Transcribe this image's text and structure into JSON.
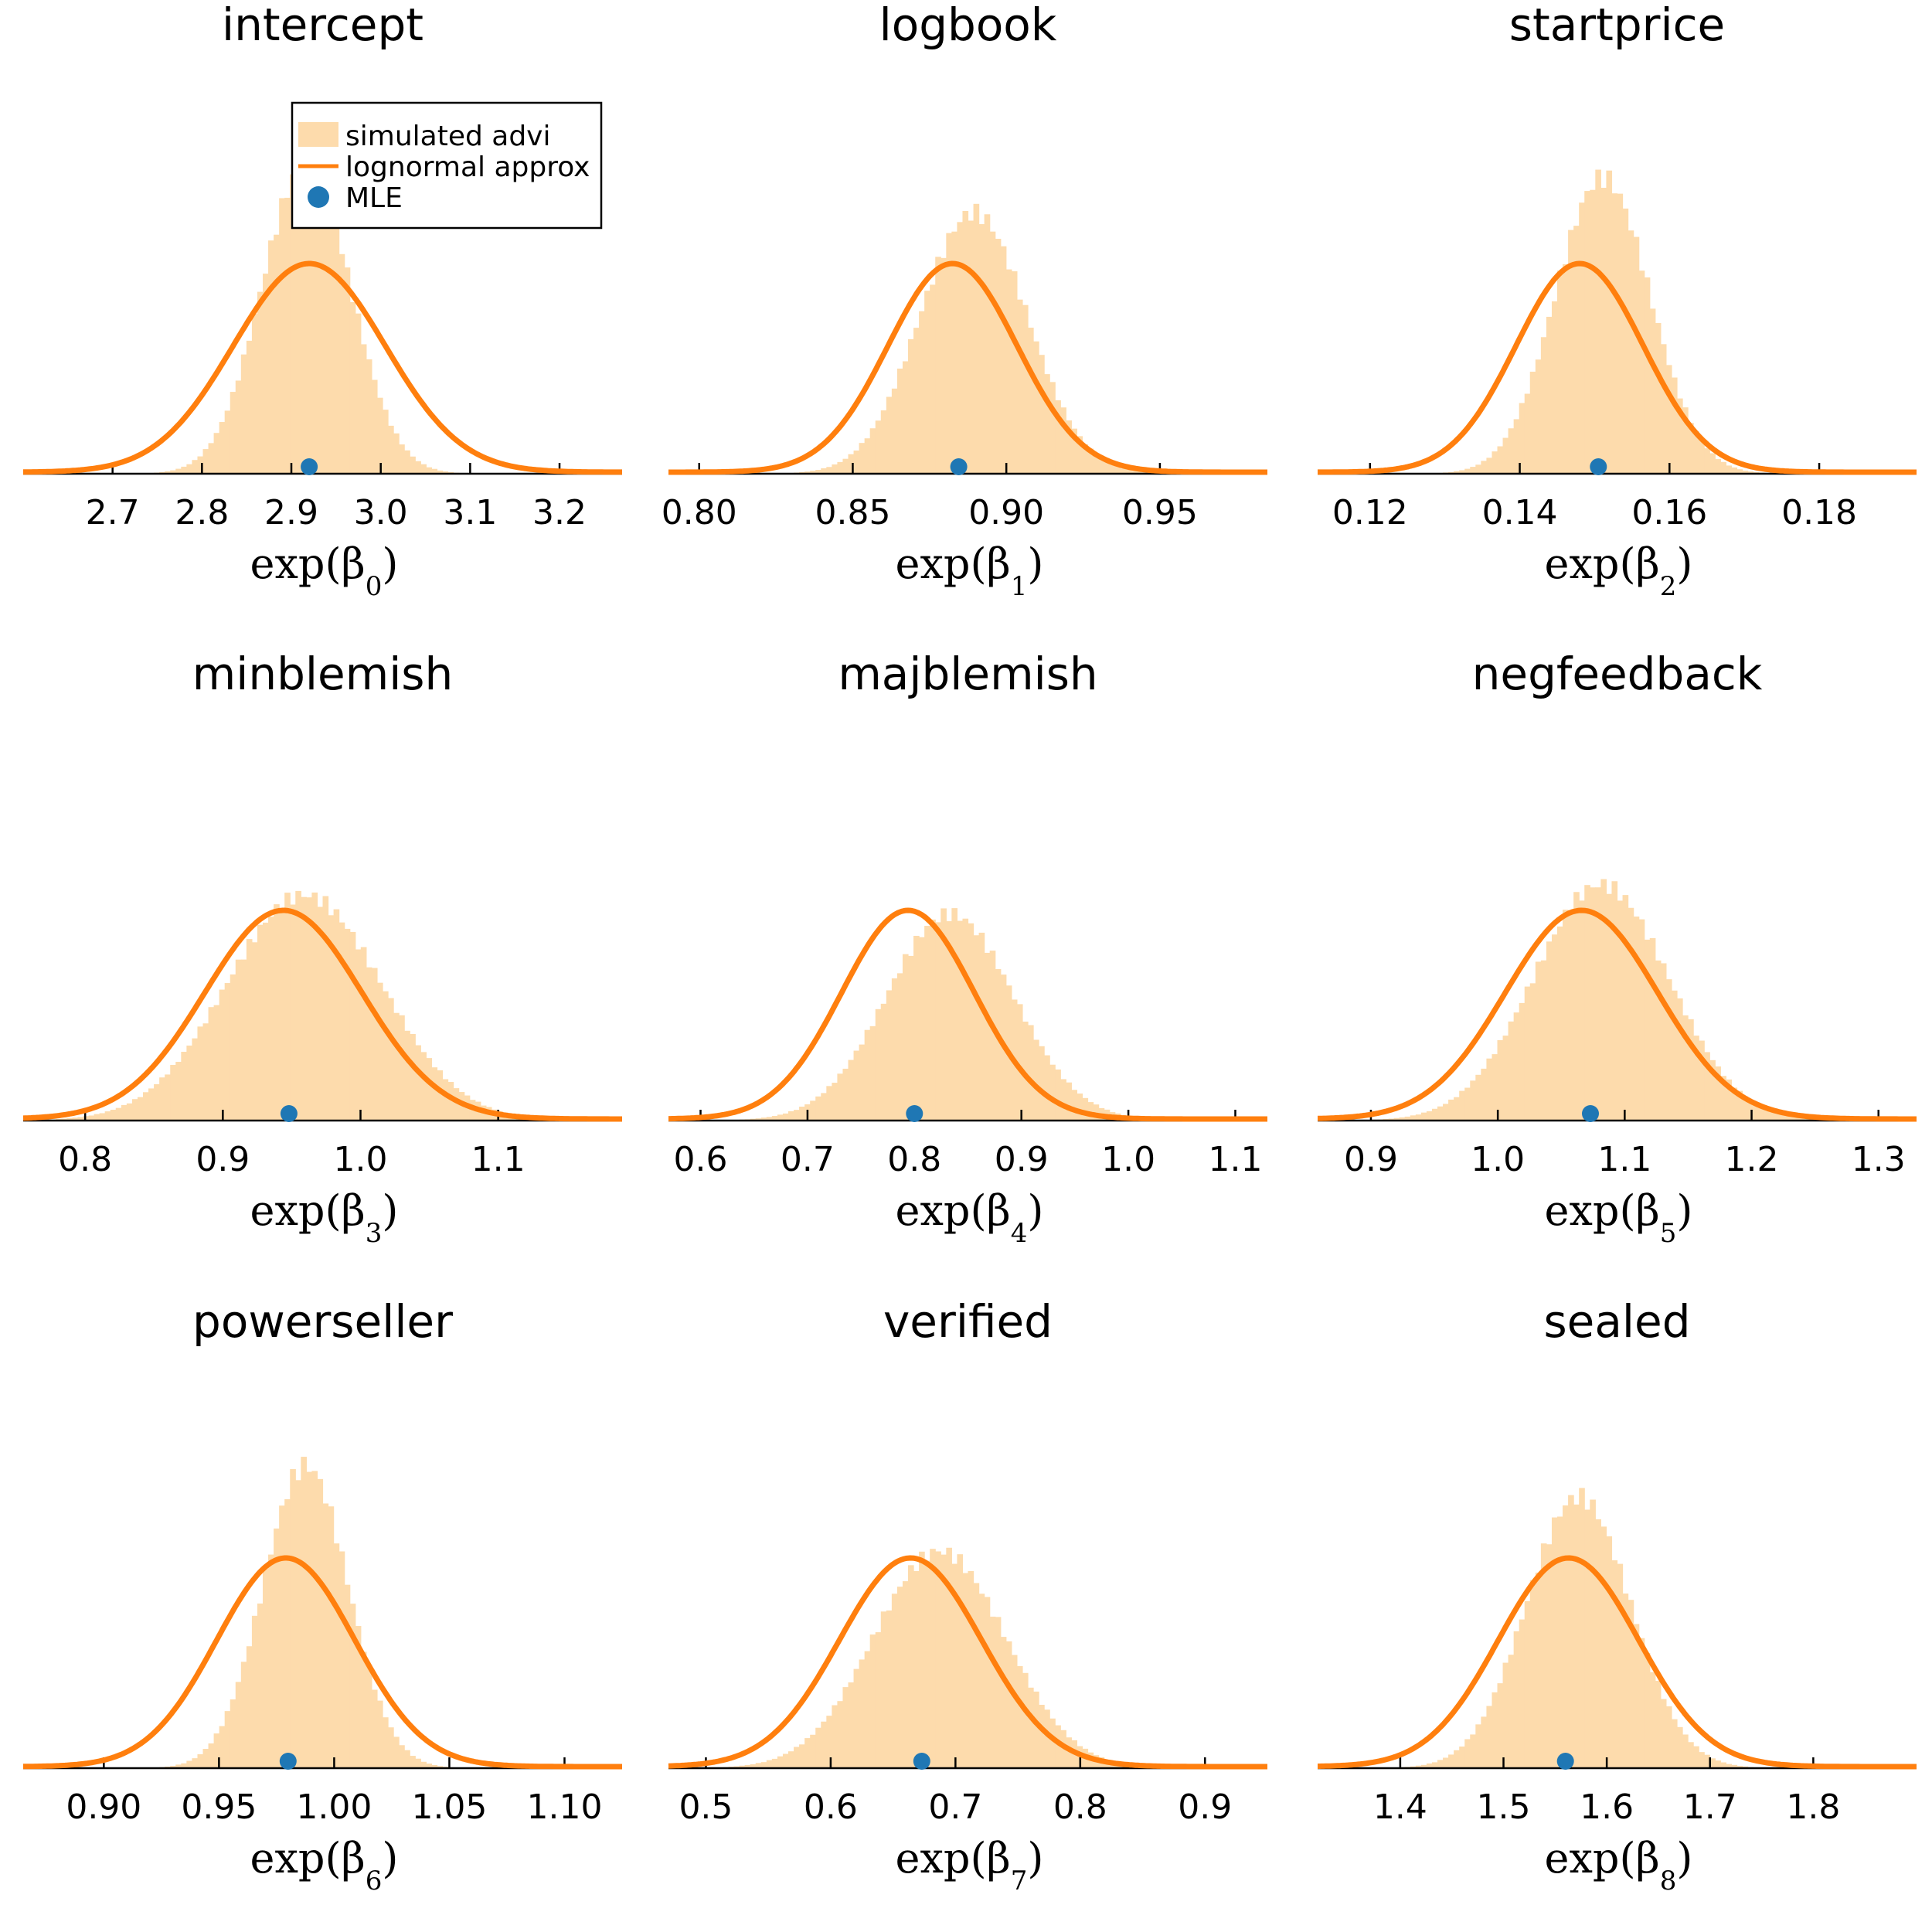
{
  "colors": {
    "hist": "#fddbac",
    "curve": "#ff7f0e",
    "mle": "#1f77b4",
    "axis": "#000000"
  },
  "legend": {
    "location": "top-right of first panel",
    "entries": [
      {
        "label": "simulated advi",
        "kind": "hist"
      },
      {
        "label": "lognormal approx",
        "kind": "line"
      },
      {
        "label": "MLE",
        "kind": "marker"
      }
    ]
  },
  "chart_data": [
    {
      "type": "histogram+density",
      "title": "intercept",
      "xlabel": "exp(β)",
      "xlabel_subscript": "0",
      "xlim": [
        2.6,
        3.27
      ],
      "xticks": [
        "2.7",
        "2.8",
        "2.9",
        "3.0",
        "3.1",
        "3.2"
      ],
      "hist": {
        "mean": 2.91,
        "sd": 0.05,
        "skew": 0.15,
        "peak": 1.48
      },
      "approx": {
        "mean": 2.92,
        "sd": 0.085,
        "peak": 1.0
      },
      "mle": 2.92
    },
    {
      "type": "histogram+density",
      "title": "logbook",
      "xlabel": "exp(β)",
      "xlabel_subscript": "1",
      "xlim": [
        0.79,
        0.985
      ],
      "xticks": [
        "0.80",
        "0.85",
        "0.90",
        "0.95"
      ],
      "hist": {
        "mean": 0.885,
        "sd": 0.018,
        "skew": 0.3,
        "peak": 1.25
      },
      "approx": {
        "mean": 0.8825,
        "sd": 0.021,
        "peak": 1.0
      },
      "mle": 0.8845
    },
    {
      "type": "histogram+density",
      "title": "startprice",
      "xlabel": "exp(β)",
      "xlabel_subscript": "2",
      "xlim": [
        0.113,
        0.193
      ],
      "xticks": [
        "0.12",
        "0.14",
        "0.16",
        "0.18"
      ],
      "hist": {
        "mean": 0.1495,
        "sd": 0.0065,
        "skew": 0.3,
        "peak": 1.42
      },
      "approx": {
        "mean": 0.148,
        "sd": 0.0085,
        "peak": 1.0
      },
      "mle": 0.1505
    },
    {
      "type": "histogram+density",
      "title": "minblemish",
      "xlabel": "exp(β)",
      "xlabel_subscript": "3",
      "xlim": [
        0.755,
        1.19
      ],
      "xticks": [
        "0.8",
        "0.9",
        "1.0",
        "1.1"
      ],
      "hist": {
        "mean": 0.945,
        "sd": 0.058,
        "skew": 0.3,
        "peak": 1.08
      },
      "approx": {
        "mean": 0.944,
        "sd": 0.057,
        "peak": 1.0
      },
      "mle": 0.948
    },
    {
      "type": "histogram+density",
      "title": "majblemish",
      "xlabel": "exp(β)",
      "xlabel_subscript": "4",
      "xlim": [
        0.57,
        1.13
      ],
      "xticks": [
        "0.6",
        "0.7",
        "0.8",
        "0.9",
        "1.0",
        "1.1"
      ],
      "hist": {
        "mean": 0.808,
        "sd": 0.065,
        "skew": 0.55,
        "peak": 0.99
      },
      "approx": {
        "mean": 0.794,
        "sd": 0.062,
        "peak": 1.0
      },
      "mle": 0.8
    },
    {
      "type": "histogram+density",
      "title": "negfeedback",
      "xlabel": "exp(β)",
      "xlabel_subscript": "5",
      "xlim": [
        0.858,
        1.33
      ],
      "xticks": [
        "0.9",
        "1.0",
        "1.1",
        "1.2",
        "1.3"
      ],
      "hist": {
        "mean": 1.068,
        "sd": 0.055,
        "skew": 0.3,
        "peak": 1.13
      },
      "approx": {
        "mean": 1.066,
        "sd": 0.06,
        "peak": 1.0
      },
      "mle": 1.073
    },
    {
      "type": "histogram+density",
      "title": "powerseller",
      "xlabel": "exp(β)",
      "xlabel_subscript": "6",
      "xlim": [
        0.865,
        1.125
      ],
      "xticks": [
        "0.90",
        "0.95",
        "1.00",
        "1.05",
        "1.10"
      ],
      "hist": {
        "mean": 0.983,
        "sd": 0.019,
        "skew": 0.3,
        "peak": 1.45
      },
      "approx": {
        "mean": 0.979,
        "sd": 0.03,
        "peak": 1.0
      },
      "mle": 0.98
    },
    {
      "type": "histogram+density",
      "title": "verified",
      "xlabel": "exp(β)",
      "xlabel_subscript": "7",
      "xlim": [
        0.47,
        0.95
      ],
      "xticks": [
        "0.5",
        "0.6",
        "0.7",
        "0.8",
        "0.9"
      ],
      "hist": {
        "mean": 0.672,
        "sd": 0.055,
        "skew": 0.35,
        "peak": 1.04
      },
      "approx": {
        "mean": 0.664,
        "sd": 0.057,
        "peak": 1.0
      },
      "mle": 0.673
    },
    {
      "type": "histogram+density",
      "title": "sealed",
      "xlabel": "exp(β)",
      "xlabel_subscript": "8",
      "xlim": [
        1.32,
        1.9
      ],
      "xticks": [
        "1.4",
        "1.5",
        "1.6",
        "1.7",
        "1.8"
      ],
      "hist": {
        "mean": 1.56,
        "sd": 0.052,
        "skew": 0.3,
        "peak": 1.3
      },
      "approx": {
        "mean": 1.563,
        "sd": 0.068,
        "peak": 1.0
      },
      "mle": 1.56
    }
  ]
}
